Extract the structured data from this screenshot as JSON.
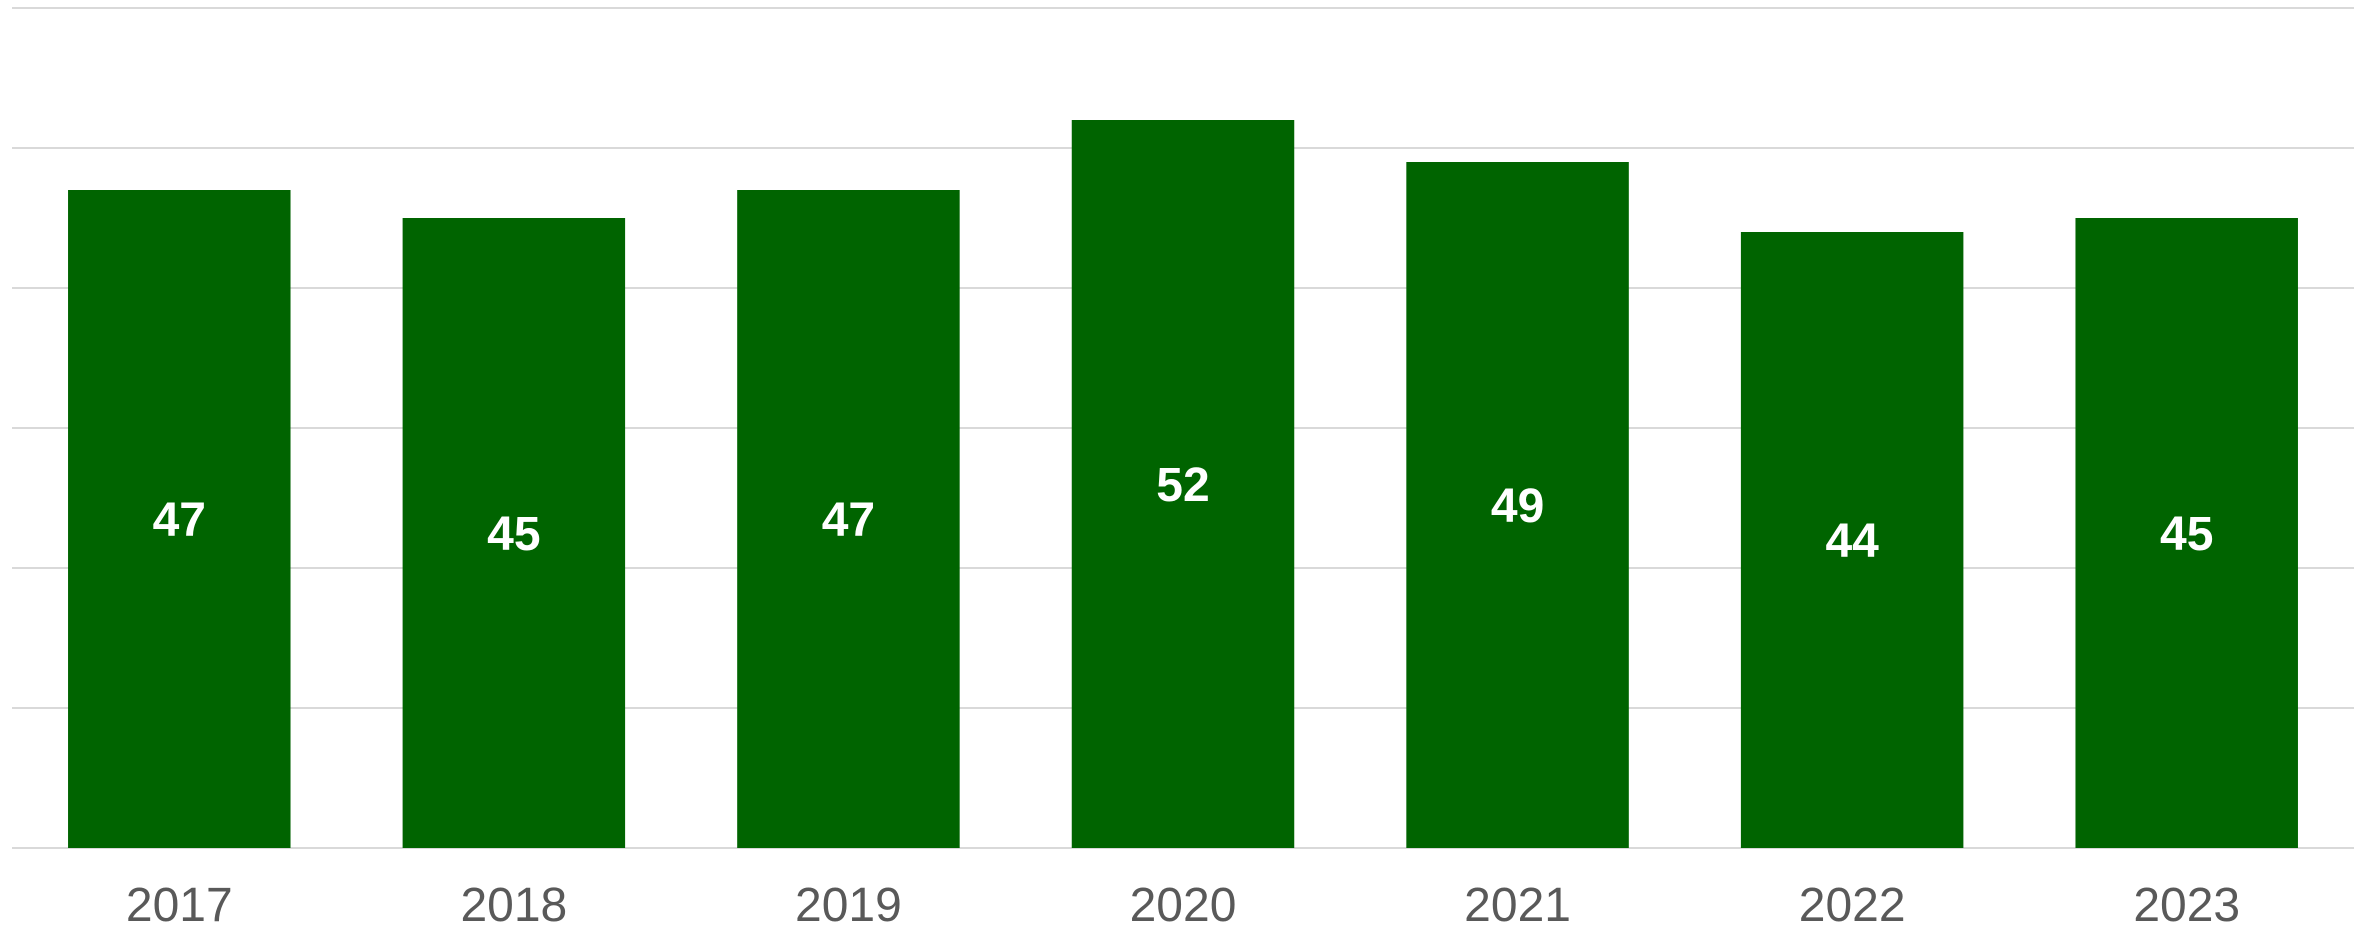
{
  "chart_data": {
    "type": "bar",
    "title": "",
    "xlabel": "",
    "ylabel": "",
    "categories": [
      "2017",
      "2018",
      "2019",
      "2020",
      "2021",
      "2022",
      "2023"
    ],
    "values": [
      47,
      45,
      47,
      52,
      49,
      44,
      45
    ],
    "data_labels": [
      "47",
      "45",
      "47",
      "52",
      "49",
      "44",
      "45"
    ],
    "ylim": [
      0,
      60
    ],
    "grid": true,
    "legend": "none",
    "colors": {
      "bar": "#006400",
      "data_label": "#ffffff",
      "tick_label": "#595959",
      "grid": "#d9d9d9"
    }
  }
}
